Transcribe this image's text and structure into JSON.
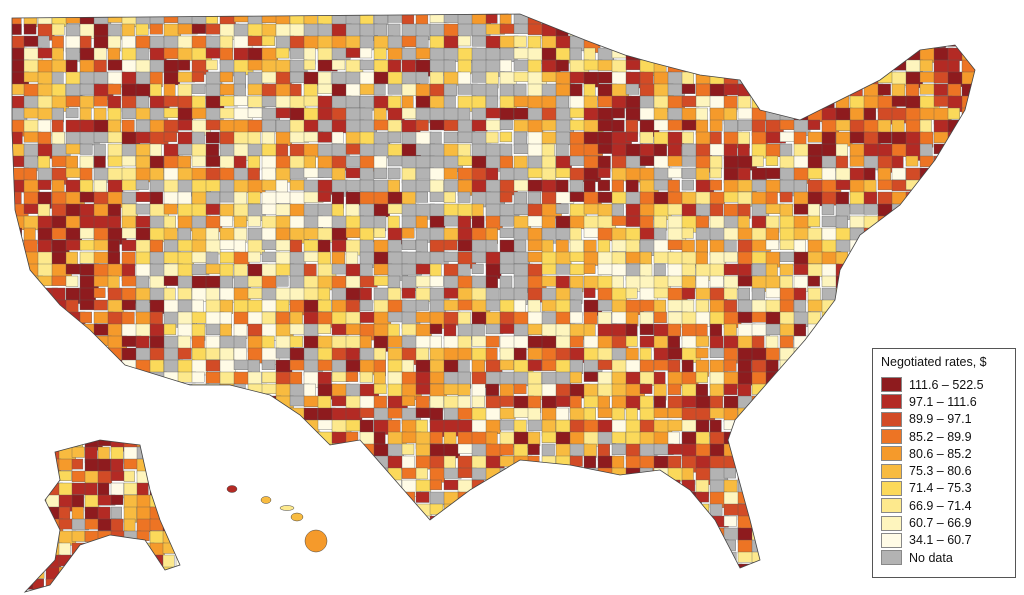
{
  "legend": {
    "title": "Negotiated rates, $",
    "bins": [
      {
        "label": "111.6 – 522.5",
        "color": "#8e1b1e"
      },
      {
        "label": "97.1 – 111.6",
        "color": "#b32a24"
      },
      {
        "label": "89.9 – 97.1",
        "color": "#d24b26"
      },
      {
        "label": "85.2 – 89.9",
        "color": "#ed7424"
      },
      {
        "label": "80.6 – 85.2",
        "color": "#f59a2b"
      },
      {
        "label": "75.3 – 80.6",
        "color": "#f8bb40"
      },
      {
        "label": "71.4 – 75.3",
        "color": "#fbd95a"
      },
      {
        "label": "66.9 – 71.4",
        "color": "#fde98d"
      },
      {
        "label": "60.7 – 66.9",
        "color": "#fef5be"
      },
      {
        "label": "34.1 – 60.7",
        "color": "#fffbe6"
      },
      {
        "label": "No data",
        "color": "#b3b3b3"
      }
    ]
  }
}
